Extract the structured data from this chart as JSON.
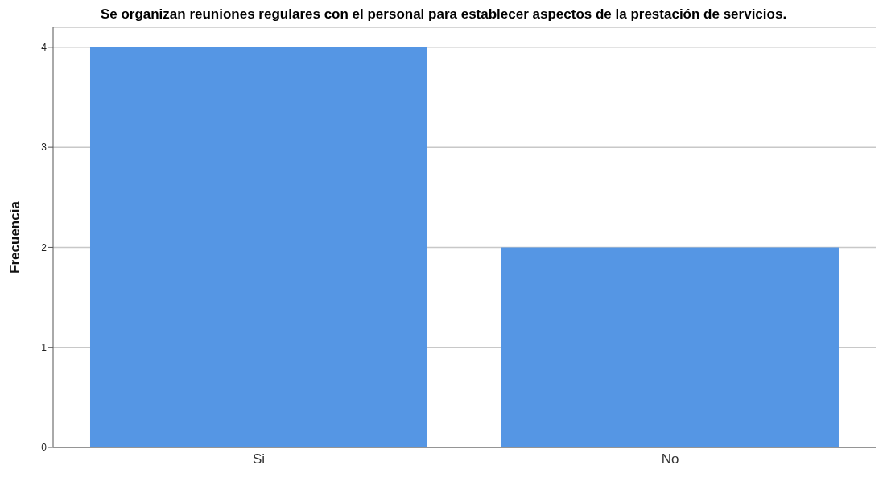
{
  "chart_data": {
    "type": "bar",
    "title": "Se organizan reuniones regulares con el personal para establecer aspectos de la prestación de servicios.",
    "ylabel": "Frecuencia",
    "categories": [
      "Si",
      "No"
    ],
    "values": [
      4,
      2
    ],
    "color": "#5596e4",
    "ylim": [
      0,
      4.2
    ],
    "yticks": [
      0,
      1,
      2,
      3,
      4
    ],
    "grid": "y"
  }
}
